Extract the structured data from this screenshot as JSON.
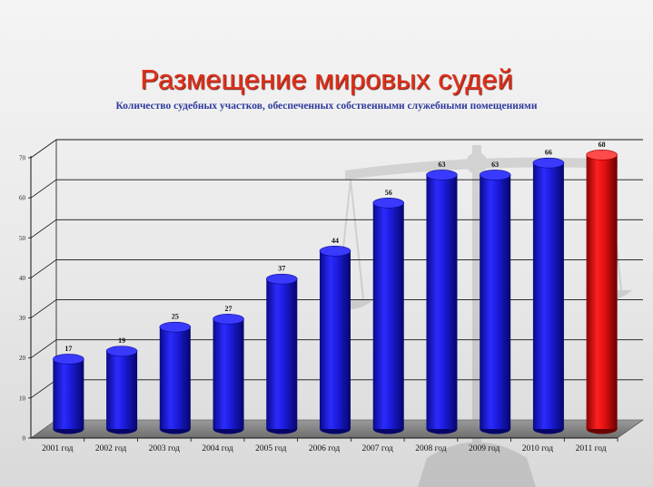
{
  "slide": {
    "title": "Размещение мировых судей",
    "subtitle": "Количество судебных участков, обеспеченных собственными служебными помещениями"
  },
  "colors": {
    "title": "#e0301a",
    "subtitle": "#2e3a9c",
    "bar_blue": "#1a1ad6",
    "bar_red": "#e01010",
    "floor": "#7f7f7f"
  },
  "chart_data": {
    "type": "bar",
    "categories": [
      "2001 год",
      "2002 год",
      "2003 год",
      "2004 год",
      "2005 год",
      "2006 год",
      "2007 год",
      "2008 год",
      "2009 год",
      "2010 год",
      "2011 год"
    ],
    "values": [
      17,
      19,
      25,
      27,
      37,
      44,
      56,
      63,
      63,
      66,
      68
    ],
    "data_labels": [
      "17",
      "19",
      "25",
      "27",
      "37",
      "44",
      "56",
      "63",
      "63",
      "66",
      "68"
    ],
    "highlight_index": 10,
    "ylim": [
      0,
      70
    ],
    "yticks": [
      "0",
      "10",
      "20",
      "30",
      "40",
      "50",
      "60",
      "70"
    ],
    "grid": true,
    "legend": "none",
    "bar_shape": "3d-cylinder"
  }
}
